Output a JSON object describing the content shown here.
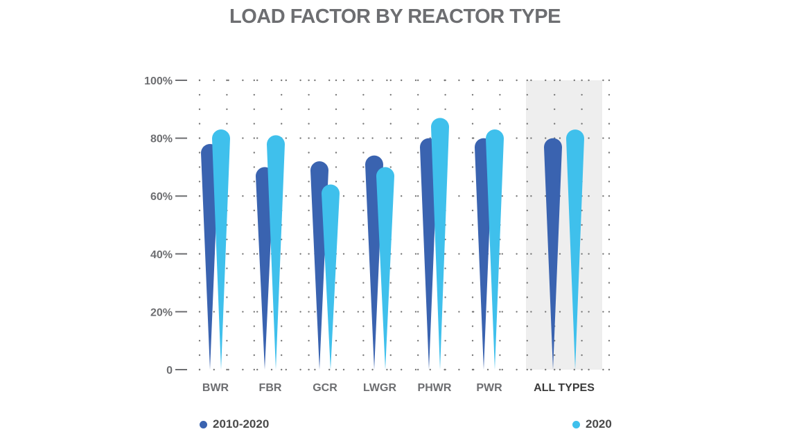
{
  "chart_data": {
    "type": "bar",
    "title": "LOAD FACTOR BY REACTOR TYPE",
    "categories": [
      "BWR",
      "FBR",
      "GCR",
      "LWGR",
      "PHWR",
      "PWR",
      "ALL TYPES"
    ],
    "highlighted_category": "ALL TYPES",
    "series": [
      {
        "name": "2010-2020",
        "color": "#3a63b0",
        "values": [
          78,
          70,
          72,
          74,
          80,
          80,
          80
        ]
      },
      {
        "name": "2020",
        "color": "#3fc0ec",
        "values": [
          83,
          81,
          64,
          70,
          87,
          83,
          83
        ]
      }
    ],
    "yticks": [
      "0",
      "20%",
      "40%",
      "60%",
      "80%",
      "100%"
    ],
    "ylim": [
      0,
      100
    ],
    "grid": "dotted",
    "legend": "bottom"
  }
}
